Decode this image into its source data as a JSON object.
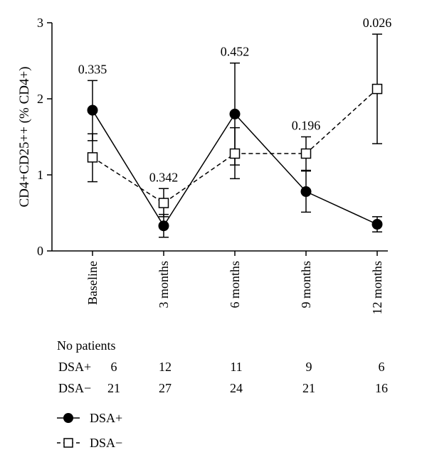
{
  "chart_data": {
    "type": "line",
    "categories": [
      "Baseline",
      "3 months",
      "6 months",
      "9 months",
      "12 months"
    ],
    "ylabel": "CD4+CD25++ (% CD4+)",
    "ylim": [
      0,
      3
    ],
    "yticks": [
      "0",
      "1",
      "2",
      "3"
    ],
    "series": [
      {
        "name": "DSA+",
        "marker": "filled-circle",
        "line": "solid",
        "values": [
          1.85,
          0.33,
          1.8,
          0.78,
          0.35
        ],
        "error_low": [
          1.45,
          0.18,
          1.13,
          0.51,
          0.25
        ],
        "error_high": [
          2.24,
          0.48,
          2.47,
          1.06,
          0.45
        ]
      },
      {
        "name": "DSA−",
        "marker": "open-square",
        "line": "dashed",
        "values": [
          1.23,
          0.63,
          1.28,
          1.28,
          2.13
        ],
        "error_low": [
          0.91,
          0.45,
          0.95,
          1.05,
          1.41
        ],
        "error_high": [
          1.54,
          0.82,
          1.62,
          1.5,
          2.85
        ]
      }
    ],
    "p_values": [
      "0.335",
      "0.342",
      "0.452",
      "0.196",
      "0.026"
    ],
    "legend_position": "bottom-left"
  },
  "patients_table": {
    "header": "No patients",
    "rows": [
      {
        "label": "DSA+",
        "counts": [
          "6",
          "12",
          "11",
          "9",
          "6"
        ]
      },
      {
        "label": "DSA−",
        "counts": [
          "21",
          "27",
          "24",
          "21",
          "16"
        ]
      }
    ]
  }
}
